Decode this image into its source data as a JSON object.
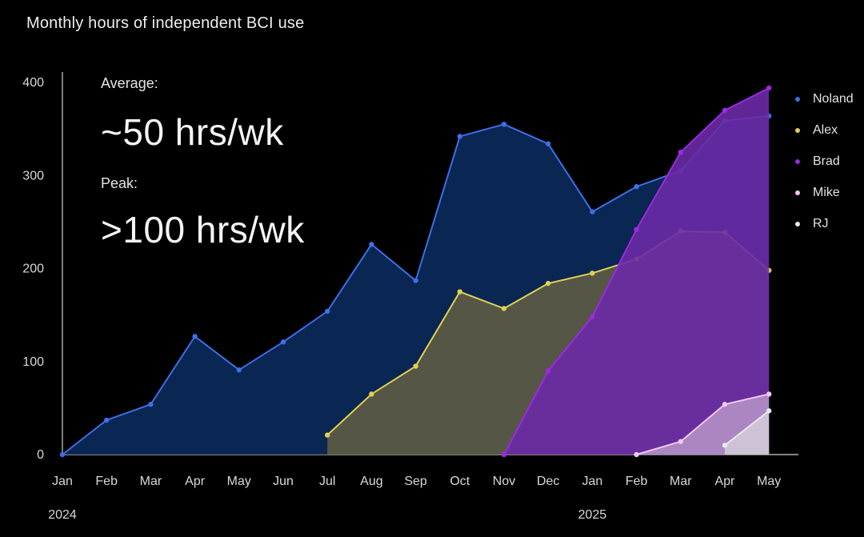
{
  "chart_data": {
    "type": "area",
    "title": "Monthly hours of independent BCI use",
    "annotations": {
      "average_label": "Average:",
      "average_value": "~50 hrs/wk",
      "peak_label": "Peak:",
      "peak_value": ">100 hrs/wk"
    },
    "x": [
      "Jan",
      "Feb",
      "Mar",
      "Apr",
      "May",
      "Jun",
      "Jul",
      "Aug",
      "Sep",
      "Oct",
      "Nov",
      "Dec",
      "Jan",
      "Feb",
      "Mar",
      "Apr",
      "May"
    ],
    "year_labels": [
      {
        "label": "2024",
        "index": 0
      },
      {
        "label": "2025",
        "index": 12
      }
    ],
    "ylim": [
      0,
      400
    ],
    "yticks": [
      0,
      100,
      200,
      300,
      400
    ],
    "grid": false,
    "legend_position": "right",
    "series": [
      {
        "name": "Noland",
        "color": "#3d6fe6",
        "fill": "#0b2a5c",
        "values": [
          0,
          37,
          54,
          127,
          91,
          121,
          154,
          226,
          187,
          342,
          355,
          334,
          261,
          288,
          305,
          359,
          364
        ]
      },
      {
        "name": "Alex",
        "color": "#e0cf55",
        "fill": "#5d5c44",
        "values": [
          null,
          null,
          null,
          null,
          null,
          null,
          21,
          65,
          95,
          175,
          157,
          184,
          195,
          210,
          240,
          239,
          198
        ]
      },
      {
        "name": "Brad",
        "color": "#9b2be0",
        "fill": "#6a2aa6",
        "values": [
          null,
          null,
          null,
          null,
          null,
          null,
          null,
          null,
          null,
          null,
          0,
          90,
          148,
          242,
          325,
          370,
          394
        ]
      },
      {
        "name": "Mike",
        "color": "#f2c6f2",
        "fill": "#b290c8",
        "values": [
          null,
          null,
          null,
          null,
          null,
          null,
          null,
          null,
          null,
          null,
          null,
          null,
          null,
          0,
          14,
          54,
          65
        ]
      },
      {
        "name": "RJ",
        "color": "#e8e8ea",
        "fill": "#d2cad8",
        "values": [
          null,
          null,
          null,
          null,
          null,
          null,
          null,
          null,
          null,
          null,
          null,
          null,
          null,
          null,
          null,
          10,
          47
        ]
      }
    ]
  }
}
